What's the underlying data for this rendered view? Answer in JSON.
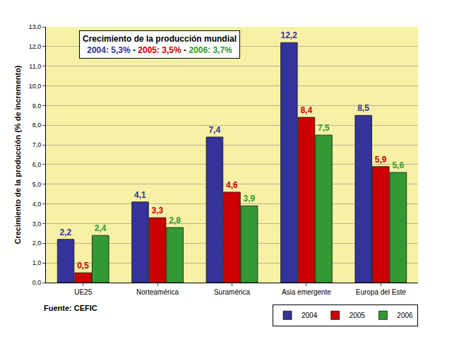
{
  "chart_data": {
    "type": "bar",
    "title": "Crecimiento de la producción mundial",
    "subtitle": [
      {
        "text": "2004: 5,3%",
        "color": "#333399"
      },
      {
        "text": " - ",
        "color": "#000000"
      },
      {
        "text": "2005: 3,5%",
        "color": "#cc0000"
      },
      {
        "text": " - ",
        "color": "#000000"
      },
      {
        "text": "2006: 3,7%",
        "color": "#339933"
      }
    ],
    "y_label": "Crecimiento de la producción (% de incremento)",
    "source": "Fuente: CEFIC",
    "categories": [
      "UE25",
      "Norteamérica",
      "Suramérica",
      "Asia emergente",
      "Europa del Este"
    ],
    "series": [
      {
        "name": "2004",
        "color": "#333399",
        "values": [
          2.2,
          4.1,
          7.4,
          12.2,
          8.5
        ],
        "value_labels": [
          "2,2",
          "4,1",
          "7,4",
          "12,2",
          "8,5"
        ]
      },
      {
        "name": "2005",
        "color": "#cc0000",
        "values": [
          0.5,
          3.3,
          4.6,
          8.4,
          5.9
        ],
        "value_labels": [
          "0,5",
          "3,3",
          "4,6",
          "8,4",
          "5,9"
        ]
      },
      {
        "name": "2006",
        "color": "#339933",
        "values": [
          2.4,
          2.8,
          3.9,
          7.5,
          5.6
        ],
        "value_labels": [
          "2,4",
          "2,8",
          "3,9",
          "7,5",
          "5,6"
        ]
      }
    ],
    "ylim": [
      0,
      13
    ],
    "yticks": [
      {
        "value": 0,
        "label": "0,0"
      },
      {
        "value": 1,
        "label": "1,0"
      },
      {
        "value": 2,
        "label": "2,0"
      },
      {
        "value": 3,
        "label": "3,0"
      },
      {
        "value": 4,
        "label": "4,0"
      },
      {
        "value": 5,
        "label": "5,0"
      },
      {
        "value": 6,
        "label": "6,0"
      },
      {
        "value": 7,
        "label": "7,0"
      },
      {
        "value": 8,
        "label": "8,0"
      },
      {
        "value": 9,
        "label": "9,0"
      },
      {
        "value": 10,
        "label": "10,0"
      },
      {
        "value": 11,
        "label": "11,0"
      },
      {
        "value": 12,
        "label": "12,0"
      },
      {
        "value": 13,
        "label": "13,0"
      }
    ],
    "grid": true,
    "data_labels": true,
    "legend": "bottom right"
  }
}
